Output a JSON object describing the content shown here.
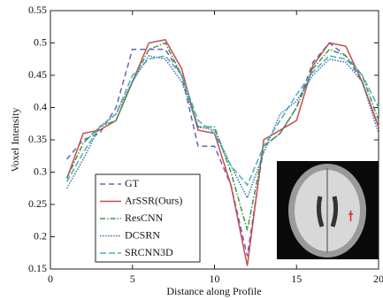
{
  "chart_data": {
    "type": "line",
    "xlabel": "Distance along Profile",
    "ylabel": "Voxel Intensity",
    "x": [
      1,
      2,
      3,
      4,
      5,
      6,
      7,
      8,
      9,
      10,
      11,
      12,
      13,
      14,
      15,
      16,
      17,
      18,
      19,
      20
    ],
    "series": [
      {
        "name": "GT",
        "color": "#6a5fb8",
        "dash": "6 4",
        "values": [
          0.32,
          0.35,
          0.36,
          0.4,
          0.49,
          0.49,
          0.49,
          0.45,
          0.34,
          0.34,
          0.28,
          0.17,
          0.34,
          0.36,
          0.4,
          0.47,
          0.5,
          0.48,
          0.44,
          0.37
        ]
      },
      {
        "name": "ArSSR(Ours)",
        "color": "#c94c4c",
        "dash": "none",
        "values": [
          0.29,
          0.36,
          0.365,
          0.38,
          0.44,
          0.5,
          0.505,
          0.46,
          0.365,
          0.36,
          0.28,
          0.155,
          0.35,
          0.365,
          0.38,
          0.465,
          0.5,
          0.495,
          0.44,
          0.37
        ]
      },
      {
        "name": "ResCNN",
        "color": "#3a9a4a",
        "dash": "6 2 1.5 2",
        "values": [
          0.29,
          0.345,
          0.37,
          0.38,
          0.44,
          0.49,
          0.5,
          0.45,
          0.37,
          0.37,
          0.3,
          0.21,
          0.34,
          0.36,
          0.4,
          0.46,
          0.49,
          0.48,
          0.45,
          0.38
        ]
      },
      {
        "name": "DCSRN",
        "color": "#3c6fb0",
        "dash": "1.5 1.5",
        "values": [
          0.275,
          0.32,
          0.37,
          0.39,
          0.44,
          0.48,
          0.475,
          0.44,
          0.37,
          0.365,
          0.31,
          0.26,
          0.33,
          0.39,
          0.41,
          0.45,
          0.475,
          0.47,
          0.44,
          0.36
        ]
      },
      {
        "name": "SRCNN3D",
        "color": "#4cb0b0",
        "dash": "7 3",
        "values": [
          0.285,
          0.33,
          0.37,
          0.39,
          0.45,
          0.475,
          0.48,
          0.45,
          0.38,
          0.36,
          0.31,
          0.28,
          0.34,
          0.38,
          0.42,
          0.455,
          0.48,
          0.475,
          0.45,
          0.4
        ]
      }
    ],
    "xlim": [
      0,
      20
    ],
    "xticks": [
      0,
      5,
      10,
      15,
      20
    ],
    "ylim": [
      0.15,
      0.55
    ],
    "yticks": [
      0.15,
      0.2,
      0.25,
      0.3,
      0.35,
      0.4,
      0.45,
      0.5,
      0.55
    ],
    "grid": false,
    "legend": "lower left"
  }
}
